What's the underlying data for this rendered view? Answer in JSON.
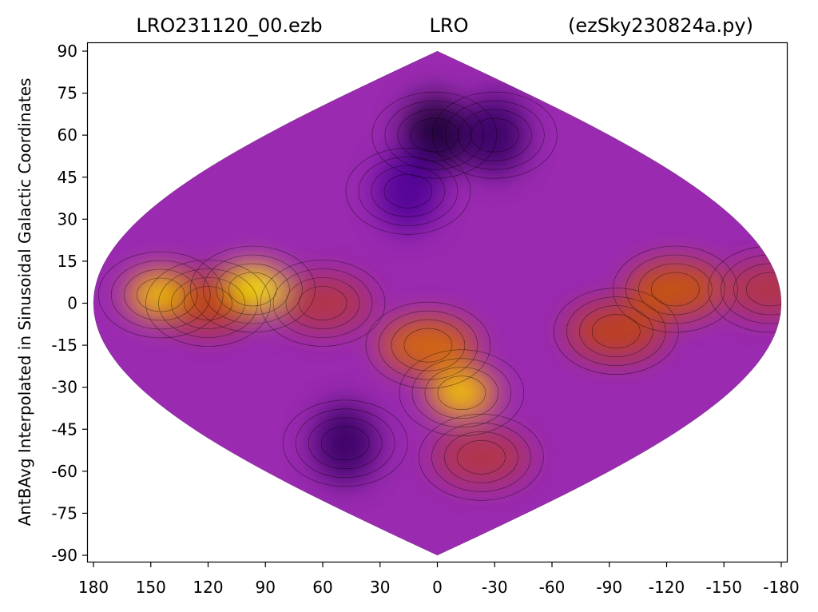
{
  "chart_data": {
    "type": "heatmap",
    "projection": "sinusoidal",
    "title_left": "LRO231120_00.ezb",
    "title_center": "LRO",
    "title_right": "(ezSky230824a.py)",
    "xlabel": "",
    "ylabel": "AntBAvg Interpolated in Sinusoidal Galactic Coordinates",
    "x_ticks": [
      "180",
      "150",
      "120",
      "90",
      "60",
      "30",
      "0",
      "-30",
      "-60",
      "-90",
      "-120",
      "-150",
      "-180"
    ],
    "x_tick_values": [
      180,
      150,
      120,
      90,
      60,
      30,
      0,
      -30,
      -60,
      -90,
      -120,
      -150,
      -180
    ],
    "y_ticks": [
      "90",
      "75",
      "60",
      "45",
      "30",
      "15",
      "0",
      "-15",
      "-30",
      "-45",
      "-60",
      "-75",
      "-90"
    ],
    "y_tick_values": [
      90,
      75,
      60,
      45,
      30,
      15,
      0,
      -15,
      -30,
      -45,
      -60,
      -75,
      -90
    ],
    "xlim": [
      180,
      -180
    ],
    "ylim": [
      -90,
      90
    ],
    "grid": false,
    "colormap": "gnuplot",
    "colors": {
      "low": "#8a00ff",
      "background": "#9a2ab0",
      "mid": "#c0440a",
      "high": "#fff200",
      "darkest": "#1a0030"
    },
    "features": [
      {
        "kind": "peak",
        "lon": 97,
        "lat": 5,
        "level": 1.0
      },
      {
        "kind": "peak",
        "lon": 145,
        "lat": 3,
        "level": 0.85
      },
      {
        "kind": "ridge",
        "lon": 120,
        "lat": 0,
        "level": 0.6
      },
      {
        "kind": "ridge",
        "lon": 60,
        "lat": 0,
        "level": 0.55
      },
      {
        "kind": "peak",
        "lon": -15,
        "lat": -32,
        "level": 0.85
      },
      {
        "kind": "ridge",
        "lon": 5,
        "lat": -15,
        "level": 0.7
      },
      {
        "kind": "ridge",
        "lon": -40,
        "lat": -55,
        "level": 0.55
      },
      {
        "kind": "ridge",
        "lon": -95,
        "lat": -10,
        "level": 0.6
      },
      {
        "kind": "ridge",
        "lon": -125,
        "lat": 5,
        "level": 0.65
      },
      {
        "kind": "ridge",
        "lon": -175,
        "lat": 5,
        "level": 0.55
      },
      {
        "kind": "trough",
        "lon": 3,
        "lat": 60,
        "level": 0.0
      },
      {
        "kind": "trough",
        "lon": -60,
        "lat": 60,
        "level": 0.05
      },
      {
        "kind": "trough",
        "lon": 20,
        "lat": 40,
        "level": 0.1
      },
      {
        "kind": "trough",
        "lon": 75,
        "lat": -50,
        "level": 0.05
      }
    ]
  }
}
